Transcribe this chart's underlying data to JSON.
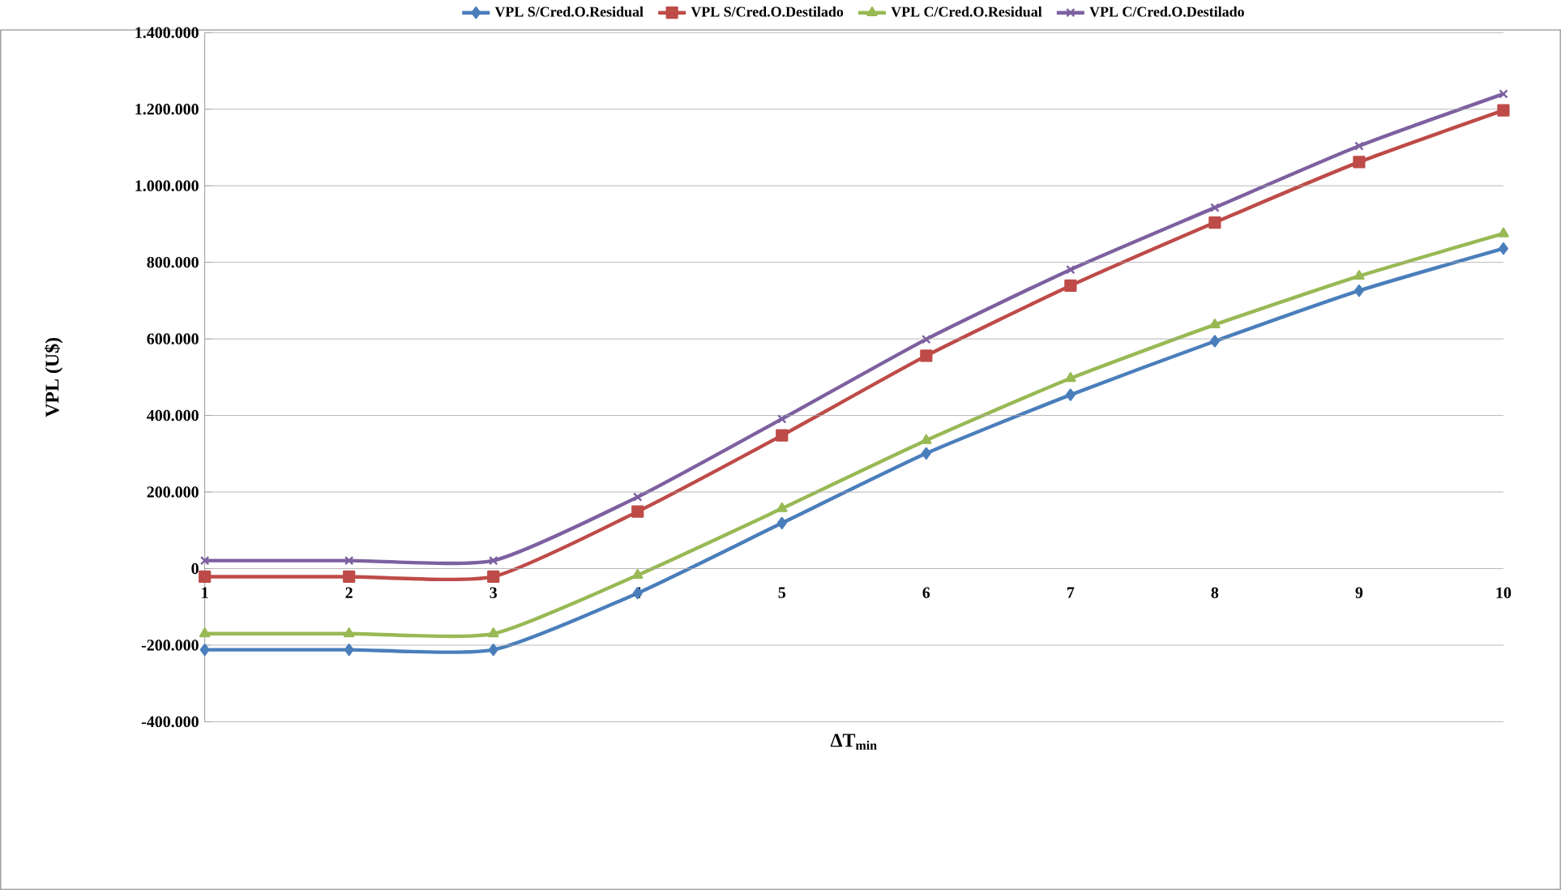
{
  "chart_data": {
    "type": "line",
    "xlabel": "ΔT$_{min}$",
    "ylabel": "VPL (U$)",
    "x": [
      1,
      2,
      3,
      4,
      5,
      6,
      7,
      8,
      9,
      10
    ],
    "xlim": [
      1,
      10
    ],
    "xticks": [
      1,
      2,
      3,
      4,
      5,
      6,
      7,
      8,
      9,
      10
    ],
    "ylim": [
      -400000,
      1400000
    ],
    "yticks": [
      {
        "value": -400000,
        "label": "-400.000"
      },
      {
        "value": -200000,
        "label": "-200.000"
      },
      {
        "value": 0,
        "label": "0"
      },
      {
        "value": 200000,
        "label": "200.000"
      },
      {
        "value": 400000,
        "label": "400.000"
      },
      {
        "value": 600000,
        "label": "600.000"
      },
      {
        "value": 800000,
        "label": "800.000"
      },
      {
        "value": 1000000,
        "label": "1.000.000"
      },
      {
        "value": 1200000,
        "label": "1.200.000"
      },
      {
        "value": 1400000,
        "label": "1.400.000"
      }
    ],
    "grid": "y",
    "legend": "top",
    "series": [
      {
        "name": "VPL S/Cred.O.Residual",
        "color": "#4a7ebb",
        "marker": "diamond",
        "values": [
          -212000,
          -212000,
          -212000,
          -64000,
          119000,
          301000,
          454000,
          594000,
          726000,
          836000
        ]
      },
      {
        "name": "VPL S/Cred.O.Destilado",
        "color": "#be4b48",
        "marker": "square",
        "values": [
          -21000,
          -21000,
          -21000,
          149000,
          348000,
          556000,
          739000,
          904000,
          1062000,
          1197000
        ]
      },
      {
        "name": "VPL C/Cred.O.Residual",
        "color": "#98b954",
        "marker": "triangle",
        "values": [
          -170000,
          -170000,
          -170000,
          -17000,
          157000,
          335000,
          497000,
          637000,
          764000,
          875000
        ]
      },
      {
        "name": "VPL C/Cred.O.Destilado",
        "color": "#7d60a0",
        "marker": "cross",
        "values": [
          21000,
          21000,
          21000,
          187000,
          391000,
          599000,
          781000,
          943000,
          1104000,
          1240000
        ]
      }
    ]
  }
}
